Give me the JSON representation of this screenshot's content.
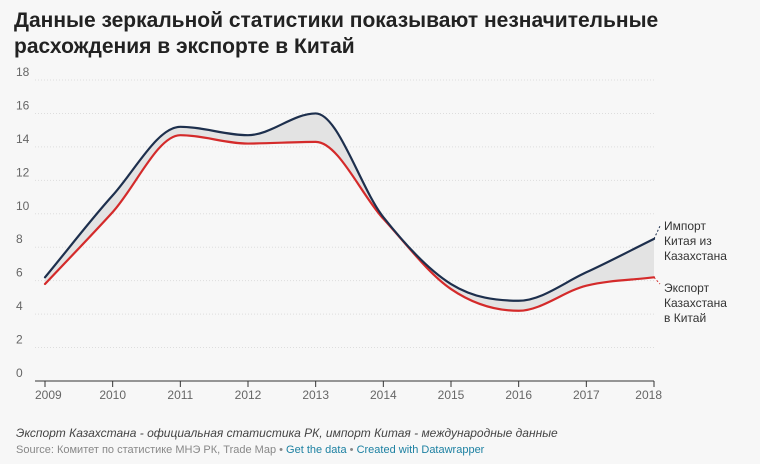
{
  "title": "Данные зеркальной статистики показывают незначительные расхождения в экспорте в Китай",
  "note": "Экспорт Казахстана - официальная статистика РК, импорт Китая - международные данные",
  "source": {
    "prefix": "Source: Комитет по статистике МНЭ РК, Trade Map",
    "sep1": " • ",
    "get_data": "Get the data",
    "sep2": " • ",
    "created_with": "Created with Datawrapper"
  },
  "chart_data": {
    "type": "line",
    "x": [
      2009,
      2010,
      2011,
      2012,
      2013,
      2014,
      2015,
      2016,
      2017,
      2018
    ],
    "series": [
      {
        "name": "Импорт Китая из Казахстана",
        "label_lines": [
          "Импорт",
          "Китая из",
          "Казахстана"
        ],
        "color": "#1d2f4d",
        "values": [
          6.2,
          11.1,
          15.2,
          14.7,
          16.0,
          9.8,
          5.8,
          4.8,
          6.5,
          8.5
        ]
      },
      {
        "name": "Экспорт Казахстана в Китай",
        "label_lines": [
          "Экспорт",
          "Казахстана",
          "в Китай"
        ],
        "color": "#d42a2a",
        "values": [
          5.8,
          10.1,
          14.7,
          14.2,
          14.3,
          9.7,
          5.5,
          4.2,
          5.7,
          6.2
        ]
      }
    ],
    "y_ticks": [
      0,
      2,
      4,
      6,
      8,
      10,
      12,
      14,
      16,
      18
    ],
    "x_ticks": [
      2009,
      2010,
      2011,
      2012,
      2013,
      2014,
      2015,
      2016,
      2017,
      2018
    ],
    "ylim": [
      0,
      18
    ],
    "xlim": [
      2009,
      2018
    ],
    "grid": "horizontal",
    "gap_fill": "#e3e3e3"
  }
}
